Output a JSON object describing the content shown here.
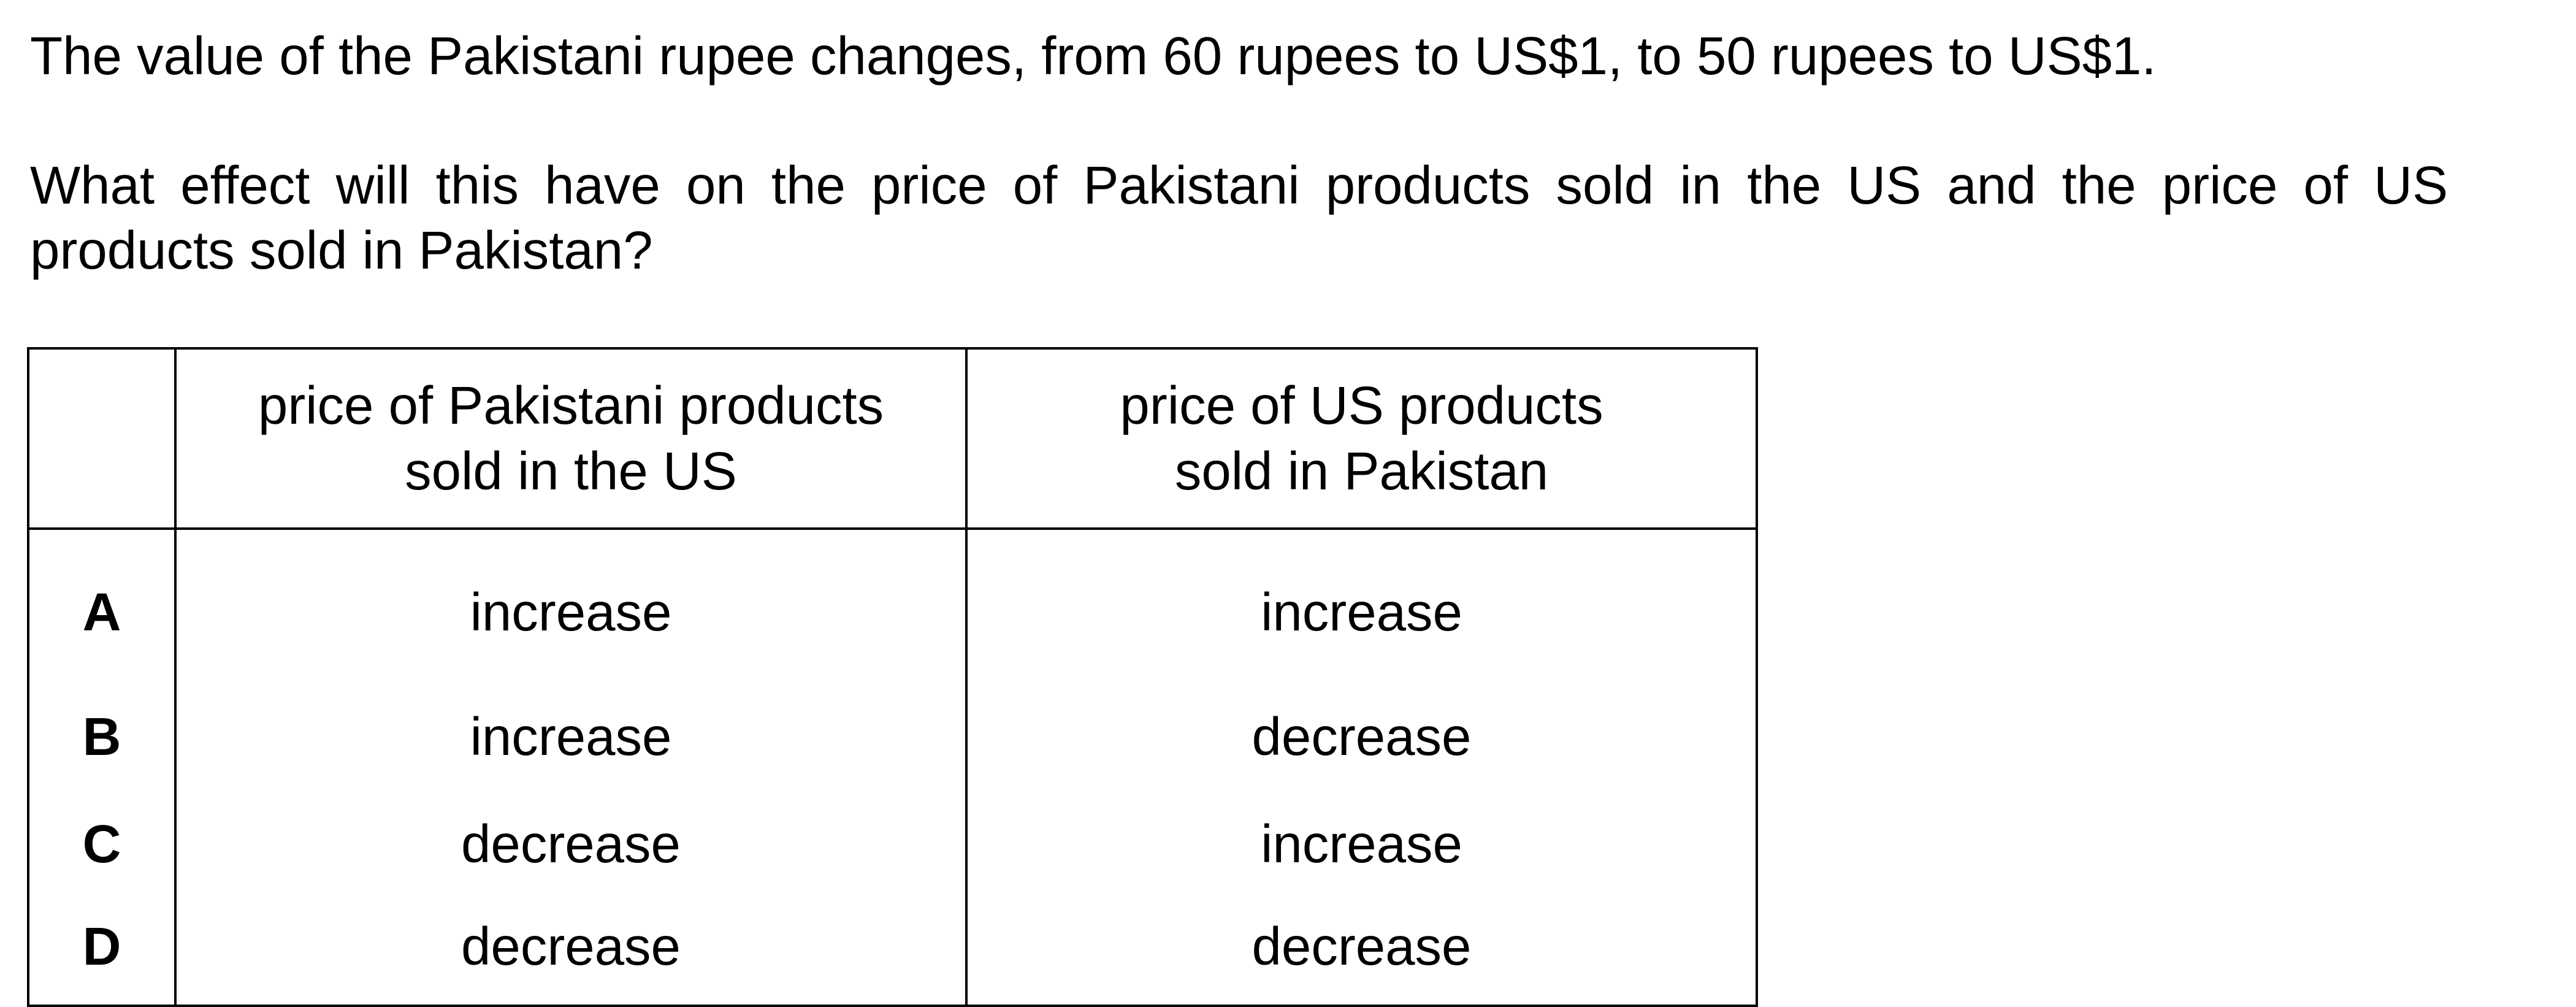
{
  "question": {
    "line1": "The value of the Pakistani rupee changes, from 60 rupees to US$1, to 50 rupees to US$1.",
    "line2": "What effect will this have on the price of Pakistani products sold in the US and the price of US",
    "line3": "products sold in Pakistan?"
  },
  "table": {
    "headers": [
      "",
      "price of Pakistani products sold in the US",
      "price of US products sold in Pakistan"
    ],
    "header_lines": {
      "col1": [
        "price of Pakistani products",
        "sold in the US"
      ],
      "col2": [
        "price of US products",
        "sold in Pakistan"
      ]
    },
    "rows": [
      {
        "letter": "A",
        "pakistani": "increase",
        "us": "increase"
      },
      {
        "letter": "B",
        "pakistani": "increase",
        "us": "decrease"
      },
      {
        "letter": "C",
        "pakistani": "decrease",
        "us": "increase"
      },
      {
        "letter": "D",
        "pakistani": "decrease",
        "us": "decrease"
      }
    ]
  }
}
